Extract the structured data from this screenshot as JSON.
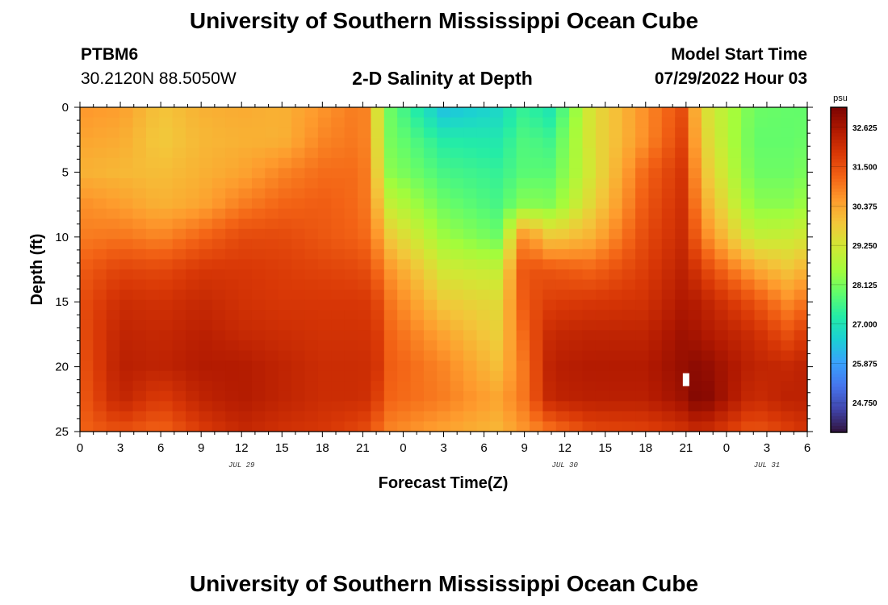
{
  "header": {
    "title": "University of Southern Mississippi Ocean Cube",
    "station_name": "PTBM6",
    "station_coords": "30.2120N  88.5050W",
    "subtitle": "2-D Salinity at Depth",
    "model_start_label": "Model Start Time",
    "model_start_value": "07/29/2022 Hour 03"
  },
  "footer": {
    "title": "University of Southern Mississippi Ocean Cube"
  },
  "chart_data": {
    "type": "heatmap",
    "title": "2-D Salinity at Depth",
    "xlabel": "Forecast Time(Z)",
    "ylabel": "Depth (ft)",
    "x_range_hours": [
      0,
      54
    ],
    "y_range_ft": [
      0,
      25
    ],
    "y_inverted": true,
    "x_tick_labels": [
      "0",
      "3",
      "6",
      "9",
      "12",
      "15",
      "18",
      "21",
      "0",
      "3",
      "6",
      "9",
      "12",
      "15",
      "18",
      "21",
      "0",
      "3",
      "6"
    ],
    "y_ticks": [
      0,
      5,
      10,
      15,
      20,
      25
    ],
    "date_labels": [
      {
        "text": "JUL 29",
        "hour": 12
      },
      {
        "text": "JUL 30",
        "hour": 36
      },
      {
        "text": "JUL 31",
        "hour": 51
      }
    ],
    "colorbar": {
      "unit": "psu",
      "range": [
        23.9,
        33.2
      ],
      "tick_values": [
        32.625,
        31.5,
        30.375,
        29.25,
        28.125,
        27.0,
        25.875,
        24.75
      ],
      "tick_labels": [
        "32.625",
        "31.500",
        "30.375",
        "29.250",
        "28.125",
        "27.000",
        "25.875",
        "24.750"
      ],
      "colors": [
        "#30123b",
        "#4145ab",
        "#4675ed",
        "#39a2fc",
        "#1bcfd4",
        "#24eca6",
        "#61fc6c",
        "#a4fc3b",
        "#d1e834",
        "#f3c63a",
        "#fe9b2d",
        "#f36315",
        "#d93806",
        "#b11901",
        "#7a0402"
      ]
    },
    "marker": {
      "hour": 45,
      "depth_ft": 21,
      "color": "#ffffff"
    },
    "time_anchors_hours": [
      0,
      3,
      6,
      9,
      12,
      15,
      18,
      21,
      22,
      23,
      27,
      31,
      33,
      35,
      38,
      42,
      45,
      46,
      50,
      53,
      54
    ],
    "depth_anchors_ft": [
      0,
      2.5,
      5,
      7.5,
      10,
      12.5,
      15,
      17.5,
      20,
      22.5,
      25
    ],
    "salinity_psu": [
      [
        30.6,
        30.4,
        30.2,
        30.7,
        30.9,
        31.3,
        31.5,
        31.5,
        31.4,
        31.3,
        31.2
      ],
      [
        30.5,
        30.3,
        30.1,
        30.5,
        31.0,
        31.7,
        32.1,
        32.3,
        32.4,
        32.3,
        31.5
      ],
      [
        29.9,
        29.8,
        30.0,
        30.2,
        30.8,
        31.6,
        32.0,
        32.2,
        32.3,
        31.8,
        31.2
      ],
      [
        30.2,
        30.1,
        30.2,
        30.4,
        31.2,
        31.9,
        32.2,
        32.4,
        32.5,
        32.3,
        31.8
      ],
      [
        30.3,
        30.2,
        30.4,
        30.9,
        31.6,
        31.9,
        32.0,
        32.2,
        32.5,
        32.5,
        32.2
      ],
      [
        30.2,
        30.2,
        30.8,
        31.2,
        31.6,
        31.8,
        31.9,
        32.1,
        32.3,
        32.3,
        32.0
      ],
      [
        30.6,
        30.8,
        31.1,
        31.3,
        31.4,
        31.7,
        31.9,
        32.0,
        32.1,
        32.1,
        31.9
      ],
      [
        31.0,
        31.0,
        31.1,
        31.1,
        31.2,
        31.6,
        31.9,
        32.0,
        32.1,
        32.1,
        31.6
      ],
      [
        29.5,
        29.6,
        29.8,
        30.2,
        30.7,
        31.2,
        31.7,
        31.9,
        32.0,
        31.8,
        31.2
      ],
      [
        28.0,
        28.1,
        28.3,
        29.0,
        29.8,
        30.6,
        31.0,
        31.2,
        31.3,
        31.2,
        30.8
      ],
      [
        26.3,
        27.2,
        27.6,
        28.0,
        28.5,
        29.2,
        29.8,
        30.4,
        30.8,
        30.9,
        30.4
      ],
      [
        26.7,
        27.1,
        27.4,
        27.6,
        28.0,
        29.0,
        29.5,
        29.7,
        30.0,
        30.4,
        30.1
      ],
      [
        27.4,
        27.7,
        27.8,
        28.3,
        30.8,
        31.5,
        31.4,
        31.2,
        31.0,
        31.0,
        30.6
      ],
      [
        27.0,
        27.5,
        27.8,
        28.2,
        29.8,
        31.4,
        31.8,
        32.2,
        32.4,
        32.3,
        31.0
      ],
      [
        29.4,
        29.4,
        29.3,
        29.6,
        30.2,
        31.2,
        31.9,
        32.3,
        32.5,
        32.4,
        31.6
      ],
      [
        30.7,
        30.7,
        31.2,
        31.4,
        31.6,
        31.8,
        32.0,
        32.3,
        32.5,
        32.4,
        31.7
      ],
      [
        31.6,
        31.8,
        32.0,
        32.1,
        32.2,
        32.4,
        32.6,
        32.8,
        32.9,
        32.8,
        32.0
      ],
      [
        29.6,
        29.8,
        30.1,
        30.5,
        31.0,
        31.8,
        32.4,
        32.6,
        33.0,
        33.2,
        32.2
      ],
      [
        28.0,
        27.9,
        28.0,
        28.3,
        29.0,
        30.4,
        31.5,
        32.1,
        32.3,
        32.1,
        31.4
      ],
      [
        27.9,
        27.9,
        28.0,
        28.3,
        29.1,
        29.8,
        30.6,
        31.4,
        32.2,
        32.4,
        31.8
      ],
      [
        27.9,
        28.0,
        28.2,
        28.6,
        29.3,
        30.4,
        31.3,
        32.1,
        32.4,
        32.3,
        32.0
      ]
    ]
  }
}
